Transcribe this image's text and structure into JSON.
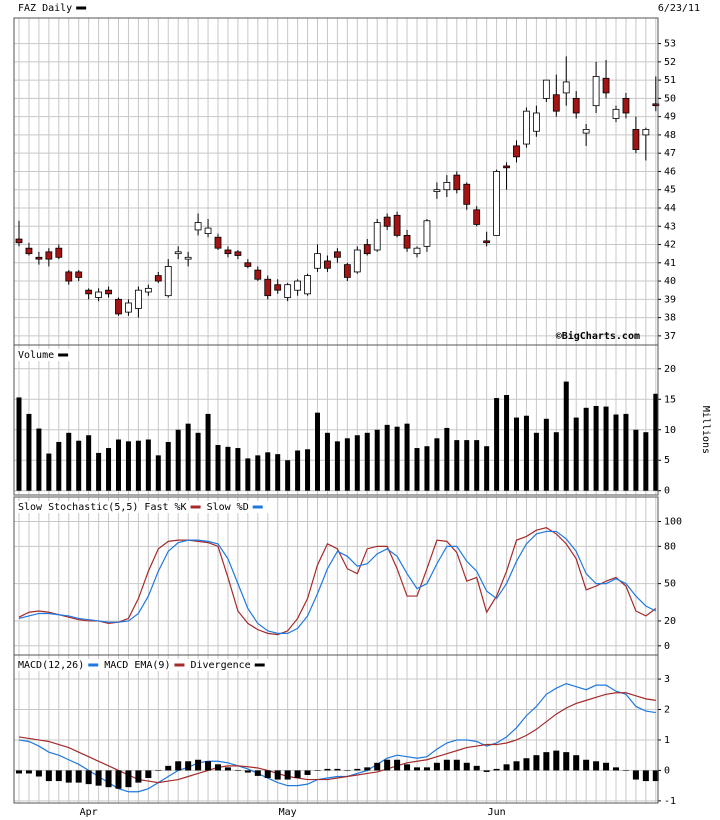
{
  "chart_data": [
    {
      "type": "candlestick",
      "title": "FAZ Daily",
      "date": "6/23/11",
      "open": [
        42.3,
        41.8,
        41.3,
        41.6,
        41.8,
        40.5,
        40.5,
        39.5,
        39.1,
        39.5,
        39.0,
        38.3,
        38.5,
        39.4,
        40.3,
        39.2,
        41.5,
        41.2,
        42.8,
        42.6,
        42.4,
        41.7,
        41.6,
        41.0,
        40.6,
        40.1,
        39.8,
        39.1,
        39.5,
        39.3,
        40.7,
        41.1,
        41.6,
        40.9,
        40.5,
        42.0,
        41.7,
        43.5,
        43.6,
        42.5,
        41.5,
        41.9,
        44.9,
        45.0,
        45.8,
        45.3,
        43.9,
        42.2,
        42.5,
        46.3,
        47.4,
        47.5,
        48.2,
        50.0,
        50.2,
        50.3,
        50.0,
        48.1,
        49.6,
        51.1,
        48.9,
        50.0,
        48.3,
        48.0,
        49.7
      ],
      "high": [
        43.3,
        42.1,
        41.6,
        41.8,
        42.0,
        40.6,
        40.6,
        39.6,
        39.6,
        39.7,
        39.1,
        39.0,
        39.7,
        39.8,
        40.5,
        41.2,
        41.9,
        41.6,
        43.7,
        43.4,
        42.6,
        41.9,
        41.7,
        41.2,
        40.8,
        40.3,
        40.1,
        39.9,
        40.1,
        40.4,
        42.0,
        41.4,
        41.8,
        41.0,
        41.9,
        42.3,
        43.4,
        43.7,
        43.8,
        42.8,
        41.9,
        43.4,
        45.4,
        45.8,
        46.0,
        45.4,
        44.1,
        42.7,
        46.1,
        46.5,
        47.7,
        49.5,
        49.6,
        51.0,
        51.3,
        52.3,
        50.4,
        48.6,
        52.0,
        52.1,
        49.6,
        50.3,
        49.0,
        48.4,
        51.2
      ],
      "low": [
        41.9,
        41.4,
        40.9,
        40.8,
        41.2,
        39.8,
        40.0,
        39.0,
        38.9,
        39.1,
        38.1,
        38.1,
        38.0,
        39.2,
        39.9,
        39.1,
        41.2,
        40.8,
        42.5,
        42.4,
        41.7,
        41.3,
        41.2,
        40.7,
        40.0,
        39.0,
        39.3,
        38.9,
        39.2,
        39.2,
        40.5,
        40.5,
        41.0,
        40.0,
        40.4,
        41.4,
        41.6,
        42.8,
        42.4,
        41.6,
        41.3,
        41.6,
        44.5,
        44.6,
        44.8,
        43.9,
        43.0,
        41.9,
        42.5,
        45.0,
        46.5,
        47.3,
        47.9,
        49.8,
        49.0,
        49.6,
        48.9,
        47.4,
        49.2,
        50.0,
        48.7,
        48.9,
        47.0,
        46.6,
        49.3
      ],
      "close": [
        42.1,
        41.5,
        41.2,
        41.2,
        41.3,
        40.0,
        40.2,
        39.3,
        39.4,
        39.3,
        38.2,
        38.8,
        39.5,
        39.6,
        40.0,
        40.8,
        41.6,
        41.3,
        43.2,
        42.9,
        41.8,
        41.5,
        41.4,
        40.8,
        40.1,
        39.2,
        39.5,
        39.8,
        40.0,
        40.3,
        41.5,
        40.7,
        41.3,
        40.2,
        41.7,
        41.5,
        43.2,
        43.0,
        42.5,
        41.8,
        41.8,
        43.3,
        45.0,
        45.4,
        45.0,
        44.2,
        43.1,
        42.1,
        46.0,
        46.2,
        46.8,
        49.3,
        49.2,
        51.0,
        49.3,
        50.9,
        49.2,
        48.3,
        51.2,
        50.3,
        49.4,
        49.2,
        47.2,
        48.3,
        49.6
      ],
      "up_color": "#ffffff",
      "down_color": "#a31515",
      "ylim": [
        36.5,
        54.4
      ],
      "yticks": [
        37,
        38,
        39,
        40,
        41,
        42,
        43,
        44,
        45,
        46,
        47,
        48,
        49,
        50,
        51,
        52,
        53
      ],
      "grid": true
    },
    {
      "type": "bar",
      "title": "Volume",
      "source": "©BigCharts.com",
      "y_label": "Millions",
      "color": "#000000",
      "values": [
        15.3,
        12.6,
        10.2,
        6.1,
        8.0,
        9.5,
        8.2,
        9.1,
        6.2,
        7.0,
        8.4,
        8.1,
        8.2,
        8.4,
        5.8,
        8.0,
        10.0,
        11.0,
        9.5,
        12.6,
        7.5,
        7.2,
        7.0,
        5.3,
        5.8,
        6.3,
        6.0,
        5.0,
        6.6,
        6.8,
        12.8,
        9.5,
        8.1,
        8.6,
        9.1,
        9.5,
        10.0,
        10.8,
        10.5,
        11.0,
        7.0,
        7.3,
        8.6,
        10.3,
        8.3,
        8.3,
        8.3,
        7.3,
        15.2,
        15.7,
        12.0,
        12.3,
        9.5,
        11.8,
        9.6,
        17.9,
        12.0,
        13.6,
        13.9,
        13.8,
        12.5,
        12.6,
        10.0,
        9.6,
        15.9
      ],
      "ylim": [
        -0.7,
        23.9
      ],
      "yticks": [
        0,
        5,
        10,
        15,
        20
      ],
      "grid": true
    },
    {
      "type": "line",
      "series": [
        {
          "name": "Slow Stochastic(5,5) Fast %K",
          "color": "#a52a2a",
          "values": [
            23,
            27,
            28,
            27,
            25,
            23,
            21,
            20,
            20,
            18,
            19,
            22,
            38,
            60,
            78,
            84,
            85,
            85,
            84,
            83,
            80,
            55,
            28,
            18,
            13,
            10,
            9,
            12,
            22,
            38,
            65,
            82,
            78,
            62,
            58,
            78,
            80,
            80,
            62,
            40,
            40,
            62,
            85,
            84,
            75,
            52,
            55,
            27,
            40,
            60,
            85,
            88,
            93,
            95,
            90,
            82,
            70,
            45,
            48,
            52,
            55,
            48,
            28,
            24,
            30
          ]
        },
        {
          "name": "Slow %D",
          "color": "#1e78e0",
          "values": [
            22,
            24,
            26,
            26,
            25,
            24,
            22,
            21,
            20,
            19,
            19,
            20,
            26,
            40,
            60,
            76,
            83,
            85,
            85,
            84,
            82,
            70,
            50,
            30,
            18,
            12,
            10,
            10,
            14,
            24,
            42,
            62,
            76,
            72,
            64,
            66,
            74,
            78,
            72,
            58,
            46,
            50,
            66,
            80,
            80,
            68,
            60,
            44,
            38,
            50,
            68,
            82,
            90,
            92,
            92,
            86,
            76,
            58,
            50,
            50,
            54,
            50,
            40,
            32,
            28
          ]
        }
      ],
      "ylim": [
        -7.4,
        119.7
      ],
      "yticks": [
        0,
        20,
        50,
        80,
        100
      ],
      "grid": true
    },
    {
      "type": "line",
      "categories": [
        null,
        null,
        null,
        null,
        null,
        null,
        null,
        "Apr",
        null,
        null,
        null,
        null,
        null,
        null,
        null,
        null,
        null,
        null,
        null,
        null,
        null,
        null,
        null,
        null,
        null,
        null,
        null,
        "May",
        null,
        null,
        null,
        null,
        null,
        null,
        null,
        null,
        null,
        null,
        null,
        null,
        null,
        null,
        null,
        null,
        null,
        null,
        null,
        null,
        "Jun",
        null,
        null,
        null,
        null,
        null,
        null,
        null,
        null,
        null,
        null,
        null,
        null,
        null,
        null,
        null,
        null
      ],
      "series": [
        {
          "name": "MACD(12,26)",
          "color": "#1e78e0",
          "values": [
            1.0,
            0.95,
            0.8,
            0.6,
            0.5,
            0.35,
            0.2,
            0.0,
            -0.2,
            -0.4,
            -0.6,
            -0.7,
            -0.7,
            -0.6,
            -0.4,
            -0.2,
            0.0,
            0.1,
            0.25,
            0.3,
            0.3,
            0.25,
            0.15,
            0.05,
            -0.1,
            -0.25,
            -0.4,
            -0.5,
            -0.5,
            -0.45,
            -0.3,
            -0.25,
            -0.2,
            -0.2,
            -0.1,
            0.0,
            0.2,
            0.4,
            0.5,
            0.45,
            0.4,
            0.45,
            0.7,
            0.9,
            1.0,
            1.0,
            0.95,
            0.8,
            0.9,
            1.1,
            1.4,
            1.8,
            2.1,
            2.5,
            2.7,
            2.85,
            2.75,
            2.65,
            2.8,
            2.8,
            2.6,
            2.5,
            2.1,
            1.95,
            1.9
          ]
        },
        {
          "name": "MACD EMA(9)",
          "color": "#a52a2a",
          "values": [
            1.1,
            1.05,
            1.0,
            0.95,
            0.85,
            0.75,
            0.6,
            0.45,
            0.3,
            0.15,
            0.0,
            -0.15,
            -0.3,
            -0.35,
            -0.4,
            -0.35,
            -0.3,
            -0.2,
            -0.1,
            0.0,
            0.1,
            0.15,
            0.15,
            0.12,
            0.08,
            0.0,
            -0.1,
            -0.2,
            -0.25,
            -0.3,
            -0.3,
            -0.3,
            -0.25,
            -0.2,
            -0.15,
            -0.1,
            -0.05,
            0.05,
            0.15,
            0.25,
            0.3,
            0.35,
            0.45,
            0.55,
            0.65,
            0.75,
            0.8,
            0.85,
            0.85,
            0.9,
            1.0,
            1.15,
            1.35,
            1.6,
            1.85,
            2.05,
            2.2,
            2.3,
            2.4,
            2.5,
            2.55,
            2.55,
            2.45,
            2.35,
            2.3
          ]
        },
        {
          "name": "Divergence",
          "color": "#000000",
          "type": "bar",
          "values": [
            -0.1,
            -0.1,
            -0.2,
            -0.35,
            -0.35,
            -0.4,
            -0.4,
            -0.45,
            -0.5,
            -0.55,
            -0.6,
            -0.55,
            -0.4,
            -0.25,
            0,
            0.15,
            0.3,
            0.3,
            0.35,
            0.3,
            0.2,
            0.1,
            0,
            -0.07,
            -0.18,
            -0.25,
            -0.3,
            -0.3,
            -0.25,
            -0.15,
            0,
            0.05,
            0.05,
            0,
            0.05,
            0.1,
            0.25,
            0.35,
            0.35,
            0.2,
            0.1,
            0.1,
            0.25,
            0.35,
            0.35,
            0.25,
            0.15,
            -0.05,
            0.05,
            0.2,
            0.3,
            0.4,
            0.5,
            0.6,
            0.65,
            0.6,
            0.5,
            0.35,
            0.3,
            0.25,
            0.1,
            0,
            -0.3,
            -0.35,
            -0.35
          ]
        }
      ],
      "ylim": [
        -1.07,
        3.79
      ],
      "yticks": [
        -1,
        0,
        1,
        2,
        3
      ],
      "grid": true
    }
  ]
}
